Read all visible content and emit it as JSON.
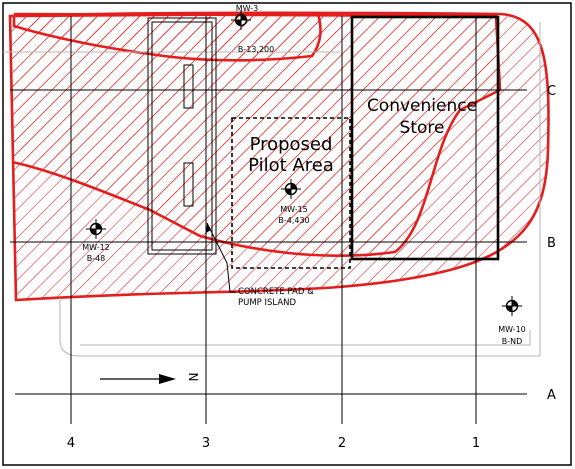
{
  "grid_rows": [
    "C",
    "B",
    "A"
  ],
  "grid_cols": [
    "4",
    "3",
    "2",
    "1"
  ],
  "wells": [
    {
      "id": "MW-3",
      "value": "B-13,200"
    },
    {
      "id": "MW-15",
      "value": "B-4,430"
    },
    {
      "id": "MW-12",
      "value": "B-48"
    },
    {
      "id": "MW-10",
      "value": "B-ND"
    }
  ],
  "labels": {
    "proposed_line1": "Proposed",
    "proposed_line2": "Pilot Area",
    "store_line1": "Convenience",
    "store_line2": "Store",
    "pad_line1": "CONCRETE PAD &",
    "pad_line2": "PUMP ISLAND",
    "north": "N"
  },
  "colors": {
    "plume": "#ff0000",
    "linework": "#000000",
    "faint": "#b0b0b0"
  }
}
